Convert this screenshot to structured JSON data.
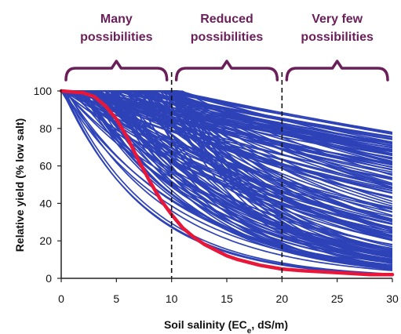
{
  "chart_data": {
    "type": "line",
    "xlabel_parts": {
      "pre": "Soil salinity (EC",
      "sub": "e",
      "post": ", dS/m)"
    },
    "ylabel": "Relative yield (% low salt)",
    "xlim": [
      0,
      30
    ],
    "ylim": [
      0,
      100
    ],
    "xticks": [
      "0",
      "5",
      "10",
      "15",
      "20",
      "25",
      "30"
    ],
    "yticks": [
      "0",
      "20",
      "40",
      "60",
      "80",
      "100"
    ],
    "thresholds": [
      10,
      20
    ],
    "regions": [
      {
        "line1": "Many",
        "line2": "possibilities",
        "x_range": [
          0,
          10
        ]
      },
      {
        "line1": "Reduced",
        "line2": "possibilities",
        "x_range": [
          10,
          20
        ]
      },
      {
        "line1": "Very few",
        "line2": "possibilities",
        "x_range": [
          20,
          30
        ]
      }
    ],
    "highlight_series": {
      "color": "#e8173a",
      "x": [
        0,
        2,
        3,
        4,
        5,
        6,
        7,
        8,
        9,
        10,
        11,
        12,
        13,
        14,
        15,
        16,
        18,
        20,
        22,
        25,
        28,
        30
      ],
      "y": [
        100,
        99,
        97,
        92,
        85,
        75,
        63,
        52,
        42,
        34,
        27,
        22,
        18,
        15,
        12,
        10,
        7,
        5,
        4,
        3,
        2,
        2
      ]
    },
    "ensemble": {
      "color": "#2e42b8",
      "count": 170,
      "threshold_range": [
        0,
        11
      ],
      "slope_range": [
        1.2,
        14
      ]
    },
    "colors": {
      "region": "#6b1f5a",
      "ensemble": "#2e42b8",
      "highlight": "#e8173a",
      "axis": "#222222"
    }
  }
}
